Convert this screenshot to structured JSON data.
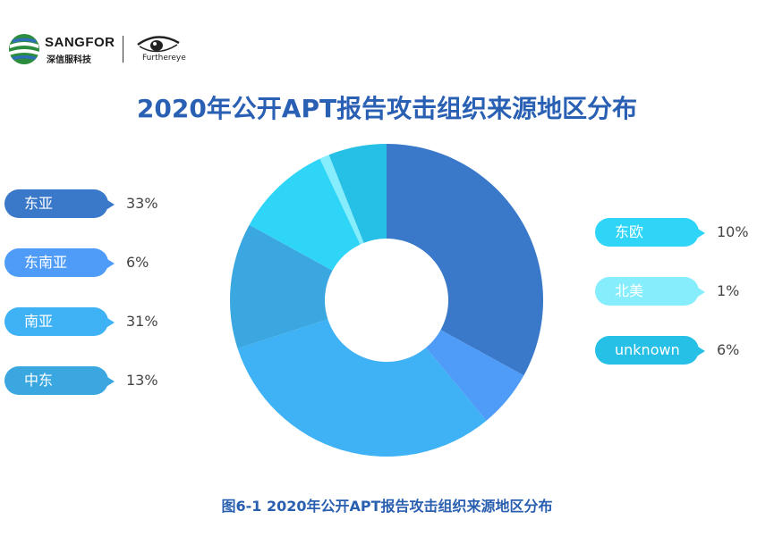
{
  "header": {
    "brand_name": "SANGFOR",
    "brand_sub": "深信服科技",
    "partner_text": "Furthereye"
  },
  "title": "2020年公开APT报告攻击组织来源地区分布",
  "caption": "图6-1  2020年公开APT报告攻击组织来源地区分布",
  "chart_data": {
    "type": "pie",
    "donut": true,
    "title": "2020年公开APT报告攻击组织来源地区分布",
    "slices": [
      {
        "label": "东亚",
        "value": 33,
        "display": "33%",
        "color": "#3a78c9"
      },
      {
        "label": "东南亚",
        "value": 6,
        "display": "6%",
        "color": "#4f9cf8"
      },
      {
        "label": "南亚",
        "value": 31,
        "display": "31%",
        "color": "#3fb1f5"
      },
      {
        "label": "中东",
        "value": 13,
        "display": "13%",
        "color": "#3aa7e0"
      },
      {
        "label": "东欧",
        "value": 10,
        "display": "10%",
        "color": "#2fd5f7"
      },
      {
        "label": "北美",
        "value": 1,
        "display": "1%",
        "color": "#86edfc"
      },
      {
        "label": "unknown",
        "value": 6,
        "display": "6%",
        "color": "#26bfe6"
      }
    ]
  }
}
